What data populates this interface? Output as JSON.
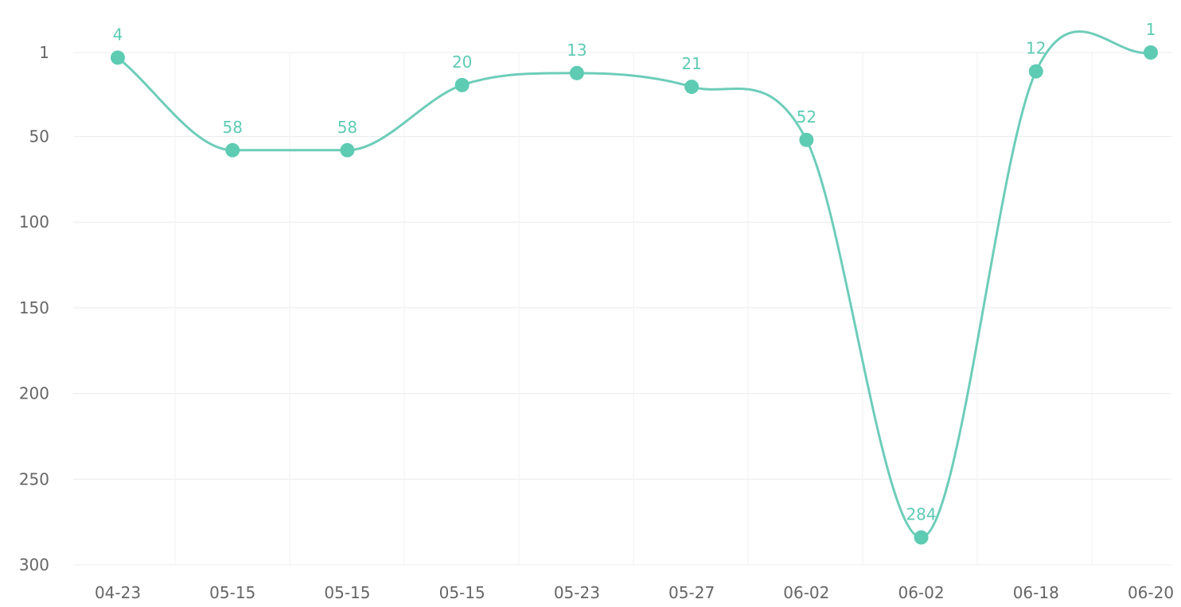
{
  "chart_data": {
    "type": "line",
    "categories": [
      "04-23",
      "05-15",
      "05-15",
      "05-15",
      "05-23",
      "05-27",
      "06-02",
      "06-02",
      "06-18",
      "06-20"
    ],
    "series": [
      {
        "values": [
          4,
          58,
          58,
          20,
          13,
          21,
          52,
          284,
          12,
          1
        ]
      }
    ],
    "data_labels": [
      "4",
      "58",
      "58",
      "20",
      "13",
      "21",
      "52",
      "284",
      "12",
      "1"
    ],
    "y_ticks": [
      1,
      50,
      100,
      150,
      200,
      250,
      300
    ],
    "y_tick_labels": [
      "1",
      "50",
      "100",
      "150",
      "200",
      "250",
      "300"
    ],
    "ylim": [
      1,
      300
    ],
    "y_inverted": true,
    "grid": true,
    "legend": "none",
    "title": "",
    "xlabel": "",
    "ylabel": "",
    "colors": {
      "line": "#6dcdb9",
      "marker": "#5ecbb3",
      "label": "#5ecbb3",
      "grid": "#ececec",
      "tick": "#666666"
    }
  }
}
